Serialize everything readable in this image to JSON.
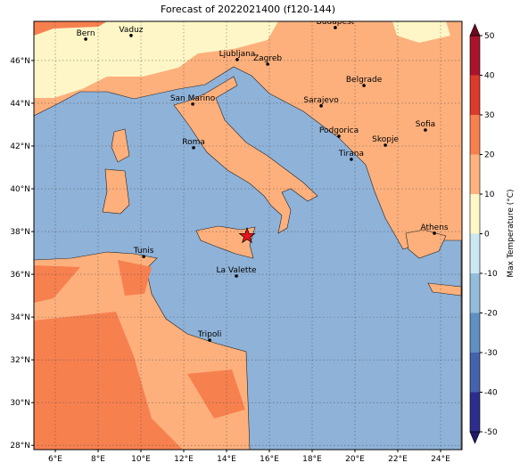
{
  "title": "Forecast of 2022021400 (f120-144)",
  "map": {
    "lon_range": [
      5,
      25
    ],
    "lat_range": [
      27.8,
      47.83
    ],
    "lon_ticks": [
      {
        "value": 6,
        "label": "6°E"
      },
      {
        "value": 8,
        "label": "8°E"
      },
      {
        "value": 10,
        "label": "10°E"
      },
      {
        "value": 12,
        "label": "12°E"
      },
      {
        "value": 14,
        "label": "14°E"
      },
      {
        "value": 16,
        "label": "16°E"
      },
      {
        "value": 18,
        "label": "18°E"
      },
      {
        "value": 20,
        "label": "20°E"
      },
      {
        "value": 22,
        "label": "22°E"
      },
      {
        "value": 24,
        "label": "24°E"
      }
    ],
    "lat_ticks": [
      {
        "value": 28,
        "label": "28°N"
      },
      {
        "value": 30,
        "label": "30°N"
      },
      {
        "value": 32,
        "label": "32°N"
      },
      {
        "value": 34,
        "label": "34°N"
      },
      {
        "value": 36,
        "label": "36°N"
      },
      {
        "value": 38,
        "label": "38°N"
      },
      {
        "value": 40,
        "label": "40°N"
      },
      {
        "value": 42,
        "label": "42°N"
      },
      {
        "value": 44,
        "label": "44°N"
      },
      {
        "value": 46,
        "label": "46°N"
      }
    ],
    "cities": [
      {
        "name": "Bern",
        "lon": 7.42,
        "lat": 47.0
      },
      {
        "name": "Vaduz",
        "lon": 9.54,
        "lat": 47.17
      },
      {
        "name": "Budapest",
        "lon": 19.08,
        "lat": 47.54
      },
      {
        "name": "Ljubljana",
        "lon": 14.5,
        "lat": 46.04
      },
      {
        "name": "Zagreb",
        "lon": 15.92,
        "lat": 45.83
      },
      {
        "name": "Belgrade",
        "lon": 20.42,
        "lat": 44.83
      },
      {
        "name": "San Marino",
        "lon": 12.42,
        "lat": 43.96
      },
      {
        "name": "Sarajevo",
        "lon": 18.42,
        "lat": 43.88
      },
      {
        "name": "Sofia",
        "lon": 23.29,
        "lat": 42.75
      },
      {
        "name": "Podgorica",
        "lon": 19.25,
        "lat": 42.46
      },
      {
        "name": "Skopje",
        "lon": 21.42,
        "lat": 42.04
      },
      {
        "name": "Roma",
        "lon": 12.46,
        "lat": 41.92
      },
      {
        "name": "Tirana",
        "lon": 19.83,
        "lat": 41.38
      },
      {
        "name": "Athens",
        "lon": 23.71,
        "lat": 37.92
      },
      {
        "name": "Tunis",
        "lon": 10.13,
        "lat": 36.83
      },
      {
        "name": "La Valette",
        "lon": 14.46,
        "lat": 35.92
      },
      {
        "name": "Tripoli",
        "lon": 13.21,
        "lat": 32.92
      }
    ],
    "marker": {
      "lon": 14.96,
      "lat": 37.79,
      "color": "#e8141c"
    }
  },
  "colorbar": {
    "label": "Max Temperature (°C)",
    "range": [
      -50,
      50
    ],
    "ticks": [
      -50,
      -40,
      -30,
      -20,
      -10,
      0,
      10,
      20,
      30,
      40,
      50
    ],
    "colors": [
      "#2c2d8c",
      "#4562ad",
      "#5f90c3",
      "#93bcdb",
      "#cbe7f1",
      "#fef7c6",
      "#fdb37e",
      "#f7804f",
      "#dc3a2a",
      "#a8142b"
    ],
    "under_color": "#1d1a6e",
    "over_color": "#6e0a1f"
  }
}
